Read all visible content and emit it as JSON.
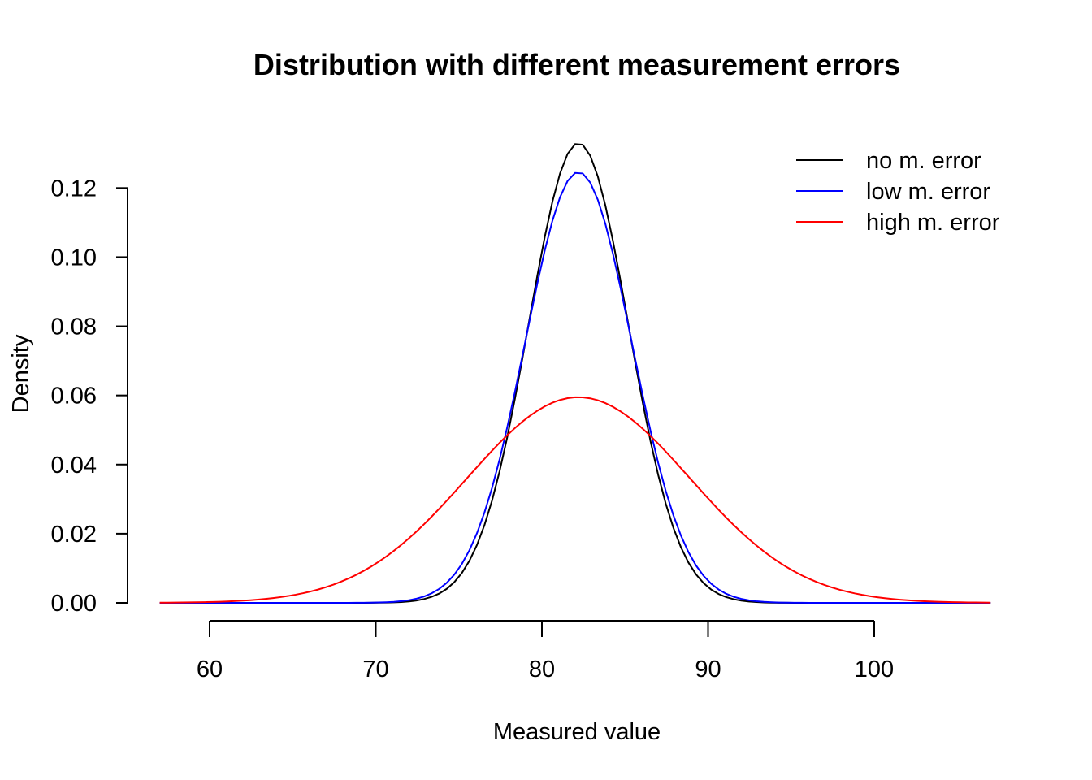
{
  "chart_data": {
    "type": "line",
    "title": "Distribution with different measurement errors",
    "xlabel": "Measured value",
    "ylabel": "Density",
    "x_range": [
      57,
      107
    ],
    "xlim": [
      55.5,
      108.5
    ],
    "ylim": [
      0,
      0.133
    ],
    "x_ticks": [
      60,
      70,
      80,
      90,
      100
    ],
    "y_ticks": [
      0.0,
      0.02,
      0.04,
      0.06,
      0.08,
      0.1,
      0.12
    ],
    "y_tick_labels": [
      "0.00",
      "0.02",
      "0.04",
      "0.06",
      "0.08",
      "0.10",
      "0.12"
    ],
    "grid": false,
    "legend_position": "top-right",
    "series": [
      {
        "name": "no m. error",
        "color": "#000000",
        "mean": 82.2,
        "sd": 3.0,
        "peak": 0.133
      },
      {
        "name": "low m. error",
        "color": "#0000ff",
        "mean": 82.2,
        "sd": 3.2,
        "peak": 0.1246
      },
      {
        "name": "high m. error",
        "color": "#ff0000",
        "mean": 82.2,
        "sd": 6.7,
        "peak": 0.0595
      }
    ]
  }
}
